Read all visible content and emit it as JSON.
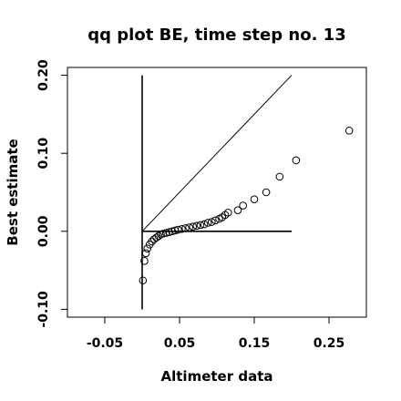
{
  "chart_data": {
    "type": "scatter",
    "title": "qq plot BE, time step no. 13",
    "xlabel": "Altimeter data",
    "ylabel": "Best estimate",
    "xlim": [
      -0.1,
      0.3
    ],
    "ylim": [
      -0.11,
      0.21
    ],
    "x_ticks": [
      -0.05,
      0.05,
      0.15,
      0.25
    ],
    "x_tick_labels": [
      "-0.05",
      "0.05",
      "0.15",
      "0.25"
    ],
    "y_ticks": [
      -0.1,
      0.0,
      0.1,
      0.2
    ],
    "y_tick_labels": [
      "-0.10",
      "0.00",
      "0.10",
      "0.20"
    ],
    "grid": false,
    "marker": "open-circle",
    "points": [
      {
        "x": 0.001,
        "y": -0.063
      },
      {
        "x": 0.003,
        "y": -0.038
      },
      {
        "x": 0.005,
        "y": -0.028
      },
      {
        "x": 0.007,
        "y": -0.022
      },
      {
        "x": 0.01,
        "y": -0.017
      },
      {
        "x": 0.013,
        "y": -0.013
      },
      {
        "x": 0.016,
        "y": -0.01
      },
      {
        "x": 0.019,
        "y": -0.008
      },
      {
        "x": 0.022,
        "y": -0.006
      },
      {
        "x": 0.025,
        "y": -0.004
      },
      {
        "x": 0.028,
        "y": -0.003
      },
      {
        "x": 0.032,
        "y": -0.002
      },
      {
        "x": 0.036,
        "y": -0.001
      },
      {
        "x": 0.04,
        "y": 0.0
      },
      {
        "x": 0.044,
        "y": 0.001
      },
      {
        "x": 0.048,
        "y": 0.002
      },
      {
        "x": 0.053,
        "y": 0.003
      },
      {
        "x": 0.058,
        "y": 0.004
      },
      {
        "x": 0.063,
        "y": 0.005
      },
      {
        "x": 0.068,
        "y": 0.006
      },
      {
        "x": 0.073,
        "y": 0.007
      },
      {
        "x": 0.078,
        "y": 0.008
      },
      {
        "x": 0.083,
        "y": 0.009
      },
      {
        "x": 0.088,
        "y": 0.011
      },
      {
        "x": 0.093,
        "y": 0.012
      },
      {
        "x": 0.098,
        "y": 0.014
      },
      {
        "x": 0.103,
        "y": 0.016
      },
      {
        "x": 0.107,
        "y": 0.018
      },
      {
        "x": 0.111,
        "y": 0.021
      },
      {
        "x": 0.115,
        "y": 0.024
      },
      {
        "x": 0.128,
        "y": 0.027
      },
      {
        "x": 0.135,
        "y": 0.033
      },
      {
        "x": 0.15,
        "y": 0.041
      },
      {
        "x": 0.166,
        "y": 0.05
      },
      {
        "x": 0.184,
        "y": 0.07
      },
      {
        "x": 0.206,
        "y": 0.091
      },
      {
        "x": 0.277,
        "y": 0.129
      }
    ],
    "reference_lines": [
      {
        "name": "identity-line",
        "x1": 0.0,
        "y1": 0.0,
        "x2": 0.2,
        "y2": 0.2
      },
      {
        "name": "zero-line",
        "x1": 0.0,
        "y1": 0.0,
        "x2": 0.2,
        "y2": 0.0
      },
      {
        "name": "vertical-line",
        "x1": 0.0,
        "y1": -0.1,
        "x2": 0.0,
        "y2": 0.2
      }
    ]
  }
}
